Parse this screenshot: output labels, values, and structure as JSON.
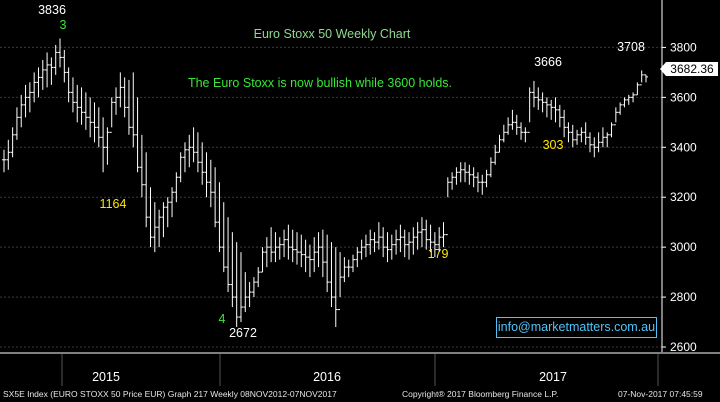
{
  "chart_data": {
    "type": "ohlc",
    "title": "Euro Stoxx 50 Weekly Chart",
    "subtitle": "The Euro Stoxx is now bullish while 3600 holds.",
    "yticks": [
      2600,
      2800,
      3000,
      3200,
      3400,
      3600,
      3800
    ],
    "ylim": [
      2580,
      3990
    ],
    "xlabels": [
      "2015",
      "2016",
      "2017"
    ],
    "last_price": "3682.36",
    "series": [
      {
        "name": "SX5E Index",
        "ohlc_note": "approximate weekly high/low/close read from chart",
        "high": [
          3390,
          3430,
          3480,
          3560,
          3610,
          3650,
          3660,
          3700,
          3720,
          3750,
          3780,
          3760,
          3810,
          3836,
          3790,
          3720,
          3680,
          3650,
          3640,
          3620,
          3600,
          3580,
          3560,
          3520,
          3480,
          3600,
          3640,
          3700,
          3680,
          3670,
          3700,
          3600,
          3450,
          3380,
          3240,
          3180,
          3150,
          3180,
          3200,
          3240,
          3300,
          3380,
          3420,
          3450,
          3480,
          3460,
          3420,
          3380,
          3350,
          3320,
          3260,
          3180,
          3120,
          3060,
          3020,
          2980,
          2900,
          2860,
          2880,
          2920,
          3000,
          3040,
          3080,
          3060,
          3040,
          3070,
          3090,
          3070,
          3060,
          3050,
          3030,
          3010,
          3040,
          3060,
          3070,
          3050,
          3020,
          3000,
          2980,
          2960,
          2950,
          2970,
          3000,
          3030,
          3050,
          3070,
          3060,
          3100,
          3080,
          3060,
          3050,
          3070,
          3090,
          3070,
          3060,
          3080,
          3100,
          3120,
          3110,
          3090,
          3060,
          3080,
          3100,
          3280,
          3300,
          3320,
          3340,
          3340,
          3330,
          3320,
          3300,
          3290,
          3310,
          3360,
          3410,
          3450,
          3490,
          3520,
          3550,
          3530,
          3500,
          3480,
          3640,
          3666,
          3640,
          3620,
          3600,
          3590,
          3600,
          3570,
          3550,
          3500,
          3490,
          3470,
          3480,
          3500,
          3460,
          3440,
          3460,
          3480,
          3460,
          3500,
          3560,
          3580,
          3600,
          3610,
          3620,
          3660,
          3708,
          3690
        ],
        "low": [
          3300,
          3310,
          3360,
          3430,
          3480,
          3520,
          3540,
          3580,
          3600,
          3630,
          3640,
          3650,
          3690,
          3720,
          3660,
          3580,
          3540,
          3500,
          3490,
          3470,
          3440,
          3420,
          3400,
          3300,
          3330,
          3480,
          3530,
          3560,
          3520,
          3450,
          3400,
          3300,
          3200,
          3080,
          3000,
          2980,
          3000,
          3040,
          3080,
          3120,
          3180,
          3260,
          3300,
          3320,
          3340,
          3300,
          3250,
          3200,
          3160,
          3080,
          2980,
          2900,
          2820,
          2760,
          2680,
          2700,
          2740,
          2760,
          2800,
          2840,
          2900,
          2920,
          2940,
          2940,
          2950,
          2960,
          2950,
          2940,
          2930,
          2920,
          2900,
          2880,
          2900,
          2920,
          2880,
          2820,
          2760,
          2680,
          2800,
          2860,
          2880,
          2900,
          2920,
          2950,
          2960,
          2970,
          2980,
          2990,
          2960,
          2940,
          2950,
          2970,
          2980,
          2960,
          2950,
          2970,
          2990,
          3000,
          2990,
          2980,
          2960,
          2980,
          3000,
          3200,
          3230,
          3250,
          3260,
          3260,
          3250,
          3240,
          3220,
          3210,
          3240,
          3280,
          3330,
          3380,
          3420,
          3450,
          3470,
          3450,
          3430,
          3420,
          3500,
          3560,
          3550,
          3540,
          3520,
          3510,
          3500,
          3480,
          3440,
          3420,
          3400,
          3410,
          3420,
          3410,
          3380,
          3360,
          3380,
          3400,
          3400,
          3440,
          3500,
          3530,
          3560,
          3570,
          3580,
          3610,
          3660,
          3660
        ],
        "close": [
          3350,
          3380,
          3450,
          3520,
          3570,
          3600,
          3620,
          3660,
          3680,
          3710,
          3730,
          3720,
          3780,
          3760,
          3700,
          3620,
          3580,
          3560,
          3540,
          3520,
          3500,
          3480,
          3440,
          3400,
          3460,
          3580,
          3600,
          3640,
          3560,
          3480,
          3450,
          3320,
          3250,
          3120,
          3040,
          3080,
          3120,
          3160,
          3180,
          3220,
          3280,
          3360,
          3390,
          3400,
          3380,
          3340,
          3300,
          3260,
          3220,
          3100,
          3000,
          2920,
          2850,
          2800,
          2720,
          2760,
          2800,
          2820,
          2860,
          2900,
          2980,
          3000,
          2980,
          3000,
          3010,
          3030,
          3000,
          2990,
          2980,
          2970,
          2960,
          2950,
          2980,
          3000,
          2940,
          2860,
          2800,
          2750,
          2880,
          2920,
          2920,
          2950,
          2980,
          3000,
          3010,
          3030,
          3020,
          3040,
          3000,
          2990,
          3010,
          3030,
          3040,
          3010,
          3020,
          3040,
          3060,
          3070,
          3030,
          3020,
          3010,
          3040,
          3050,
          3260,
          3280,
          3300,
          3310,
          3300,
          3290,
          3280,
          3260,
          3260,
          3290,
          3340,
          3380,
          3430,
          3460,
          3490,
          3500,
          3480,
          3460,
          3460,
          3620,
          3600,
          3590,
          3580,
          3570,
          3560,
          3550,
          3520,
          3480,
          3460,
          3430,
          3450,
          3460,
          3440,
          3410,
          3400,
          3420,
          3440,
          3450,
          3490,
          3540,
          3570,
          3590,
          3600,
          3610,
          3650,
          3690,
          3682
        ]
      }
    ],
    "annotations": [
      {
        "text": "3836",
        "color": "#ffffff",
        "near": "2015 peak"
      },
      {
        "text": "3",
        "color": "#39e639",
        "near": "2015 peak"
      },
      {
        "text": "1164",
        "color": "#ffe600",
        "near": "mid-2015 low"
      },
      {
        "text": "4",
        "color": "#39e639",
        "near": "2016 low"
      },
      {
        "text": "2672",
        "color": "#ffffff",
        "near": "2016 low"
      },
      {
        "text": "179",
        "color": "#ffe600",
        "near": "late-2016 breakout"
      },
      {
        "text": "3666",
        "color": "#ffffff",
        "near": "mid-2017 high"
      },
      {
        "text": "303",
        "color": "#ffe600",
        "near": "mid-2017 pullback"
      },
      {
        "text": "3708",
        "color": "#ffffff",
        "near": "late-2017 high"
      }
    ],
    "colors": {
      "background": "#000000",
      "bars": "#ffffff",
      "grid": "#3a3a3a",
      "title": "#8fd98f",
      "subtitle": "#39e639",
      "price_box_bg": "#ffffff",
      "price_box_text": "#000000",
      "info_text": "#4fc3f7"
    }
  },
  "info_box": "info@marketmatters.com.au",
  "footer": {
    "left": "SX5E Index (EURO STOXX 50 Price EUR) Graph 217  Weekly 08NOV2012-07NOV2017",
    "center": "Copyright® 2017 Bloomberg Finance L.P.",
    "right": "07-Nov-2017 07:45:59"
  }
}
